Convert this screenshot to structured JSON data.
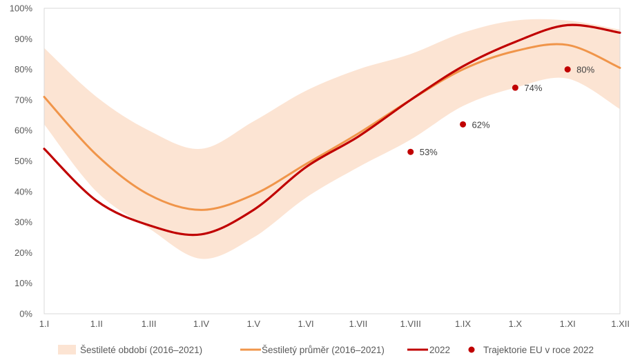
{
  "chart_data": {
    "type": "line",
    "title": "",
    "xlabel": "",
    "ylabel": "",
    "ylim": [
      0,
      100
    ],
    "y_ticks": [
      "0%",
      "10%",
      "20%",
      "30%",
      "40%",
      "50%",
      "60%",
      "70%",
      "80%",
      "90%",
      "100%"
    ],
    "categories": [
      "1.I",
      "1.II",
      "1.III",
      "1.IV",
      "1.V",
      "1.VI",
      "1.VII",
      "1.VIII",
      "1.IX",
      "1.X",
      "1.XI",
      "1.XII"
    ],
    "grid": false,
    "legend_position": "bottom",
    "band": {
      "name": "Šestileté období (2016–2021)",
      "color": "#fce4d3",
      "upper": [
        87,
        71,
        60,
        54,
        63,
        73,
        80,
        85,
        92,
        96,
        96,
        93
      ],
      "lower": [
        62,
        40,
        28,
        18,
        25,
        38,
        48,
        57,
        68,
        74,
        77,
        67
      ]
    },
    "series": [
      {
        "name": "Šestiletý průměr (2016–2021)",
        "color": "#f0954a",
        "values": [
          71,
          52,
          39,
          34,
          39,
          49,
          59,
          70,
          80,
          86,
          88,
          80.5
        ]
      },
      {
        "name": "2022",
        "color": "#c00000",
        "values": [
          54,
          37,
          29,
          26,
          34,
          48,
          58,
          70,
          81,
          89,
          94.5,
          92
        ]
      }
    ],
    "eu_points": {
      "name": "Trajektorie EU v roce 2022",
      "color": "#c00000",
      "points": [
        {
          "x": "1.VIII",
          "y": 53,
          "label": "53%"
        },
        {
          "x": "1.IX",
          "y": 62,
          "label": "62%"
        },
        {
          "x": "1.X",
          "y": 74,
          "label": "74%"
        },
        {
          "x": "1.XI",
          "y": 80,
          "label": "80%"
        }
      ]
    }
  }
}
